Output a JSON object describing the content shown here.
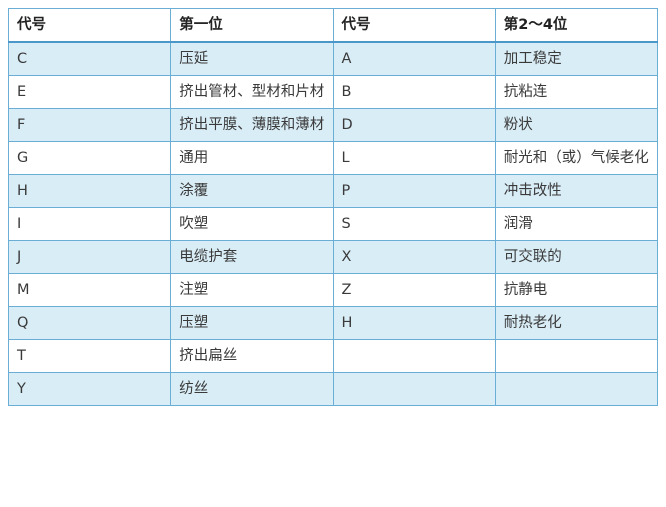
{
  "table": {
    "header": [
      "代号",
      "第一位",
      "代号",
      "第2～4位"
    ],
    "rows": [
      [
        "C",
        "压延",
        "A",
        "加工稳定"
      ],
      [
        "E",
        "挤出管材、型材和片材",
        "B",
        "抗粘连"
      ],
      [
        "F",
        "挤出平膜、薄膜和薄材",
        "D",
        "粉状"
      ],
      [
        "G",
        "通用",
        "L",
        "耐光和（或）气候老化"
      ],
      [
        "H",
        "涂覆",
        "P",
        "冲击改性"
      ],
      [
        "I",
        "吹塑",
        "S",
        "润滑"
      ],
      [
        "J",
        "电缆护套",
        "X",
        "可交联的"
      ],
      [
        "M",
        "注塑",
        "Z",
        "抗静电"
      ],
      [
        "Q",
        "压塑",
        "H",
        "耐热老化"
      ],
      [
        "T",
        "挤出扁丝"
      ],
      [
        "Y",
        "纺丝"
      ]
    ]
  }
}
